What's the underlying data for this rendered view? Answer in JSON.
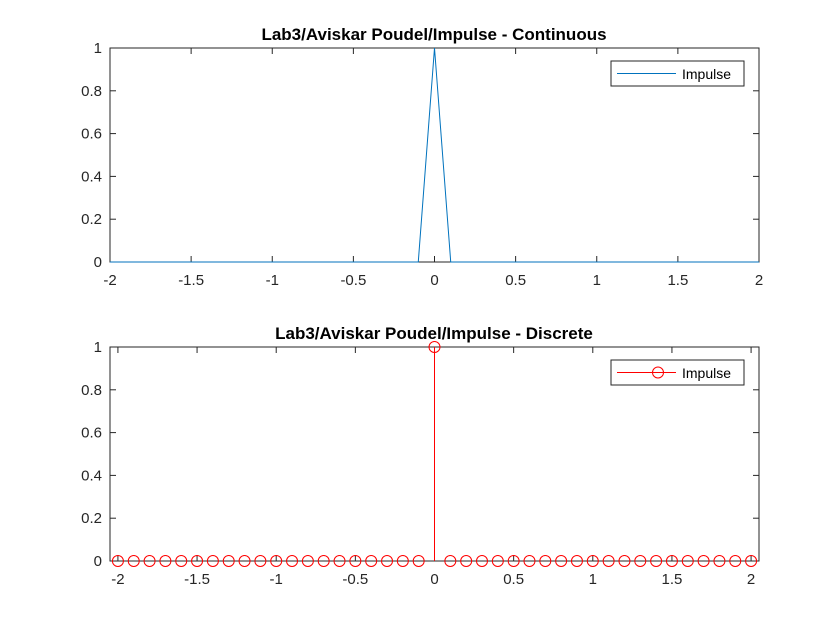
{
  "chart_data": [
    {
      "type": "line",
      "title": "Lab3/Aviskar Poudel/Impulse - Continuous",
      "xlabel": "",
      "ylabel": "",
      "xlim": [
        -2,
        2
      ],
      "ylim": [
        0,
        1
      ],
      "xticks": [
        "-2",
        "-1.5",
        "-1",
        "-0.5",
        "0",
        "0.5",
        "1",
        "1.5",
        "2"
      ],
      "yticks": [
        "0",
        "0.2",
        "0.4",
        "0.6",
        "0.8",
        "1"
      ],
      "grid": false,
      "legend": {
        "placement": "top-right",
        "entries": [
          "Impulse"
        ]
      },
      "series": [
        {
          "name": "Impulse",
          "color": "#0072BD",
          "x": [
            -2,
            -0.1,
            0,
            0.1,
            2
          ],
          "y": [
            0,
            0,
            1,
            0,
            0
          ]
        }
      ]
    },
    {
      "type": "stem",
      "title": "Lab3/Aviskar Poudel/Impulse - Discrete",
      "xlabel": "",
      "ylabel": "",
      "xlim": [
        -2.05,
        2.05
      ],
      "ylim": [
        0,
        1
      ],
      "xticks": [
        "-2",
        "-1.5",
        "-1",
        "-0.5",
        "0",
        "0.5",
        "1",
        "1.5",
        "2"
      ],
      "yticks": [
        "0",
        "0.2",
        "0.4",
        "0.6",
        "0.8",
        "1"
      ],
      "grid": false,
      "legend": {
        "placement": "top-right",
        "entries": [
          "Impulse"
        ]
      },
      "series": [
        {
          "name": "Impulse",
          "color": "#FF0000",
          "marker": "circle",
          "x": [
            -2,
            -1.9,
            -1.8,
            -1.7,
            -1.6,
            -1.5,
            -1.4,
            -1.3,
            -1.2,
            -1.1,
            -1,
            -0.9,
            -0.8,
            -0.7,
            -0.6,
            -0.5,
            -0.4,
            -0.3,
            -0.2,
            -0.1,
            0,
            0.1,
            0.2,
            0.3,
            0.4,
            0.5,
            0.6,
            0.7,
            0.8,
            0.9,
            1,
            1.1,
            1.2,
            1.3,
            1.4,
            1.5,
            1.6,
            1.7,
            1.8,
            1.9,
            2
          ],
          "y": [
            0,
            0,
            0,
            0,
            0,
            0,
            0,
            0,
            0,
            0,
            0,
            0,
            0,
            0,
            0,
            0,
            0,
            0,
            0,
            0,
            1,
            0,
            0,
            0,
            0,
            0,
            0,
            0,
            0,
            0,
            0,
            0,
            0,
            0,
            0,
            0,
            0,
            0,
            0,
            0,
            0
          ]
        }
      ]
    }
  ]
}
